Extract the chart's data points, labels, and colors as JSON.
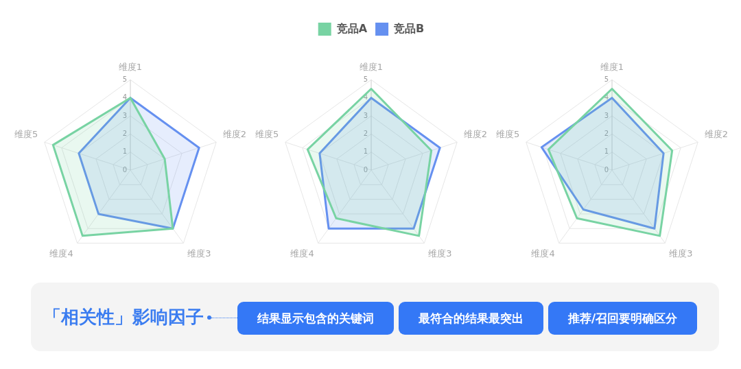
{
  "chart_data": [
    {
      "type": "radar",
      "categories": [
        "维度1",
        "维度2",
        "维度3",
        "维度4",
        "维度5"
      ],
      "series": [
        {
          "color": "#78d3a3",
          "values": [
            4,
            2,
            4,
            4.5,
            4.5
          ]
        },
        {
          "color": "#6590f0",
          "values": [
            4,
            4,
            4,
            3,
            3
          ]
        }
      ],
      "ylim": [
        0,
        5
      ],
      "yticks": [
        0,
        1,
        2,
        3,
        4,
        5
      ],
      "grid": true
    },
    {
      "type": "radar",
      "categories": [
        "维度1",
        "维度2",
        "维度3",
        "维度4",
        "维度5"
      ],
      "series": [
        {
          "name": "竞品A",
          "color": "#78d3a3",
          "values": [
            4.5,
            3.5,
            4.5,
            3.3,
            3.7
          ]
        },
        {
          "name": "竞品B",
          "color": "#6590f0",
          "values": [
            4,
            4,
            4,
            4,
            3
          ]
        }
      ],
      "ylim": [
        0,
        5
      ],
      "yticks": [
        0,
        1,
        2,
        3,
        4,
        5
      ],
      "grid": true,
      "legend": "top"
    },
    {
      "type": "radar",
      "categories": [
        "维度1",
        "维度2",
        "维度3",
        "维度4",
        "维度5"
      ],
      "series": [
        {
          "color": "#78d3a3",
          "values": [
            4.5,
            3.5,
            4.5,
            3.3,
            3.7
          ]
        },
        {
          "color": "#6590f0",
          "values": [
            4,
            3,
            4,
            2.7,
            4.1
          ]
        }
      ],
      "ylim": [
        0,
        5
      ],
      "yticks": [
        0,
        1,
        2,
        3,
        4,
        5
      ],
      "grid": true
    },
    {
      "type": "other",
      "title": "「相关性」影响因子",
      "annotations": [
        "结果显示包含的关键词",
        "最符合的结果最突出",
        "推荐/召回要明确区分"
      ]
    }
  ]
}
